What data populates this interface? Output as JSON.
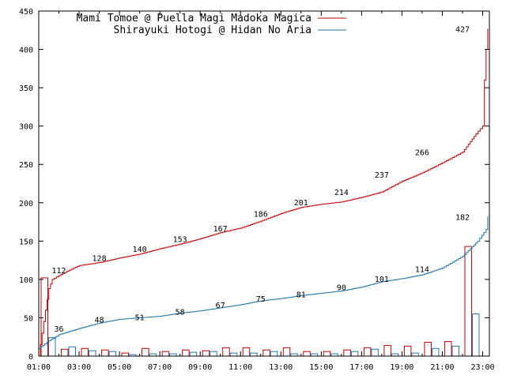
{
  "chart_data": {
    "type": "line",
    "x_unit": "time of day",
    "xticks": [
      "01:00",
      "03:00",
      "05:00",
      "07:00",
      "09:00",
      "11:00",
      "13:00",
      "15:00",
      "17:00",
      "19:00",
      "21:00",
      "23:00"
    ],
    "yticks": [
      0,
      50,
      100,
      150,
      200,
      250,
      300,
      350,
      400,
      450
    ],
    "xlim": [
      "01:00",
      "23:20"
    ],
    "ylim": [
      0,
      450
    ],
    "grid": false,
    "legend_position": "top-left",
    "series": [
      {
        "name": "Mami Tomoe @ Puella Magi Madoka Magica",
        "color": "#cc0000",
        "cumulative": [
          [
            "01:00",
            0
          ],
          [
            "01:10",
            30
          ],
          [
            "01:20",
            60
          ],
          [
            "01:30",
            88
          ],
          [
            "01:40",
            100
          ],
          [
            "02:00",
            105
          ],
          [
            "02:30",
            112
          ],
          [
            "03:00",
            118
          ],
          [
            "04:00",
            122
          ],
          [
            "05:00",
            128
          ],
          [
            "06:00",
            133
          ],
          [
            "07:00",
            140
          ],
          [
            "08:00",
            146
          ],
          [
            "09:00",
            153
          ],
          [
            "10:00",
            161
          ],
          [
            "11:00",
            167
          ],
          [
            "12:00",
            176
          ],
          [
            "13:00",
            186
          ],
          [
            "14:00",
            194
          ],
          [
            "15:00",
            198
          ],
          [
            "16:00",
            201
          ],
          [
            "17:00",
            207
          ],
          [
            "18:00",
            214
          ],
          [
            "19:00",
            228
          ],
          [
            "20:00",
            239
          ],
          [
            "21:00",
            252
          ],
          [
            "22:00",
            266
          ],
          [
            "22:40",
            290
          ],
          [
            "23:00",
            300
          ],
          [
            "23:05",
            360
          ],
          [
            "23:10",
            400
          ],
          [
            "23:15",
            427
          ]
        ],
        "labels": [
          [
            "02:00",
            112
          ],
          [
            "04:00",
            128
          ],
          [
            "06:00",
            140
          ],
          [
            "08:00",
            153
          ],
          [
            "10:00",
            167
          ],
          [
            "12:00",
            186
          ],
          [
            "14:00",
            201
          ],
          [
            "16:00",
            214
          ],
          [
            "18:00",
            237
          ],
          [
            "20:00",
            266
          ],
          [
            "22:00",
            427
          ]
        ],
        "hourly": [
          [
            "01:00",
            102
          ],
          [
            "02:00",
            9
          ],
          [
            "03:00",
            10
          ],
          [
            "04:00",
            8
          ],
          [
            "05:00",
            4
          ],
          [
            "06:00",
            10
          ],
          [
            "07:00",
            6
          ],
          [
            "08:00",
            8
          ],
          [
            "09:00",
            7
          ],
          [
            "10:00",
            11
          ],
          [
            "11:00",
            11
          ],
          [
            "12:00",
            8
          ],
          [
            "13:00",
            11
          ],
          [
            "14:00",
            6
          ],
          [
            "15:00",
            6
          ],
          [
            "16:00",
            8
          ],
          [
            "17:00",
            11
          ],
          [
            "18:00",
            14
          ],
          [
            "19:00",
            13
          ],
          [
            "20:00",
            18
          ],
          [
            "21:00",
            19
          ],
          [
            "22:00",
            143
          ]
        ]
      },
      {
        "name": "Shirayuki Hotogi @ Hidan No Aria",
        "color": "#1f77b4",
        "cumulative": [
          [
            "01:00",
            10
          ],
          [
            "01:30",
            20
          ],
          [
            "02:00",
            28
          ],
          [
            "03:00",
            36
          ],
          [
            "04:00",
            43
          ],
          [
            "05:00",
            48
          ],
          [
            "06:00",
            50
          ],
          [
            "07:00",
            52
          ],
          [
            "08:00",
            56
          ],
          [
            "09:00",
            59
          ],
          [
            "10:00",
            63
          ],
          [
            "11:00",
            67
          ],
          [
            "12:00",
            72
          ],
          [
            "13:00",
            75
          ],
          [
            "14:00",
            79
          ],
          [
            "15:00",
            82
          ],
          [
            "16:00",
            85
          ],
          [
            "17:00",
            90
          ],
          [
            "18:00",
            97
          ],
          [
            "19:00",
            101
          ],
          [
            "20:00",
            106
          ],
          [
            "21:00",
            115
          ],
          [
            "22:00",
            130
          ],
          [
            "22:45",
            150
          ],
          [
            "23:10",
            165
          ],
          [
            "23:15",
            182
          ]
        ],
        "labels": [
          [
            "02:00",
            36
          ],
          [
            "04:00",
            48
          ],
          [
            "06:00",
            51
          ],
          [
            "08:00",
            58
          ],
          [
            "10:00",
            67
          ],
          [
            "12:00",
            75
          ],
          [
            "14:00",
            81
          ],
          [
            "16:00",
            90
          ],
          [
            "18:00",
            101
          ],
          [
            "20:00",
            114
          ],
          [
            "22:00",
            182
          ]
        ],
        "hourly": [
          [
            "01:00",
            24
          ],
          [
            "02:00",
            12
          ],
          [
            "03:00",
            7
          ],
          [
            "04:00",
            6
          ],
          [
            "05:00",
            2
          ],
          [
            "06:00",
            3
          ],
          [
            "07:00",
            3
          ],
          [
            "08:00",
            5
          ],
          [
            "09:00",
            6
          ],
          [
            "10:00",
            4
          ],
          [
            "11:00",
            4
          ],
          [
            "12:00",
            6
          ],
          [
            "13:00",
            3
          ],
          [
            "14:00",
            3
          ],
          [
            "15:00",
            3
          ],
          [
            "16:00",
            6
          ],
          [
            "17:00",
            9
          ],
          [
            "18:00",
            3
          ],
          [
            "19:00",
            4
          ],
          [
            "20:00",
            10
          ],
          [
            "21:00",
            13
          ],
          [
            "22:00",
            55
          ]
        ]
      }
    ]
  }
}
